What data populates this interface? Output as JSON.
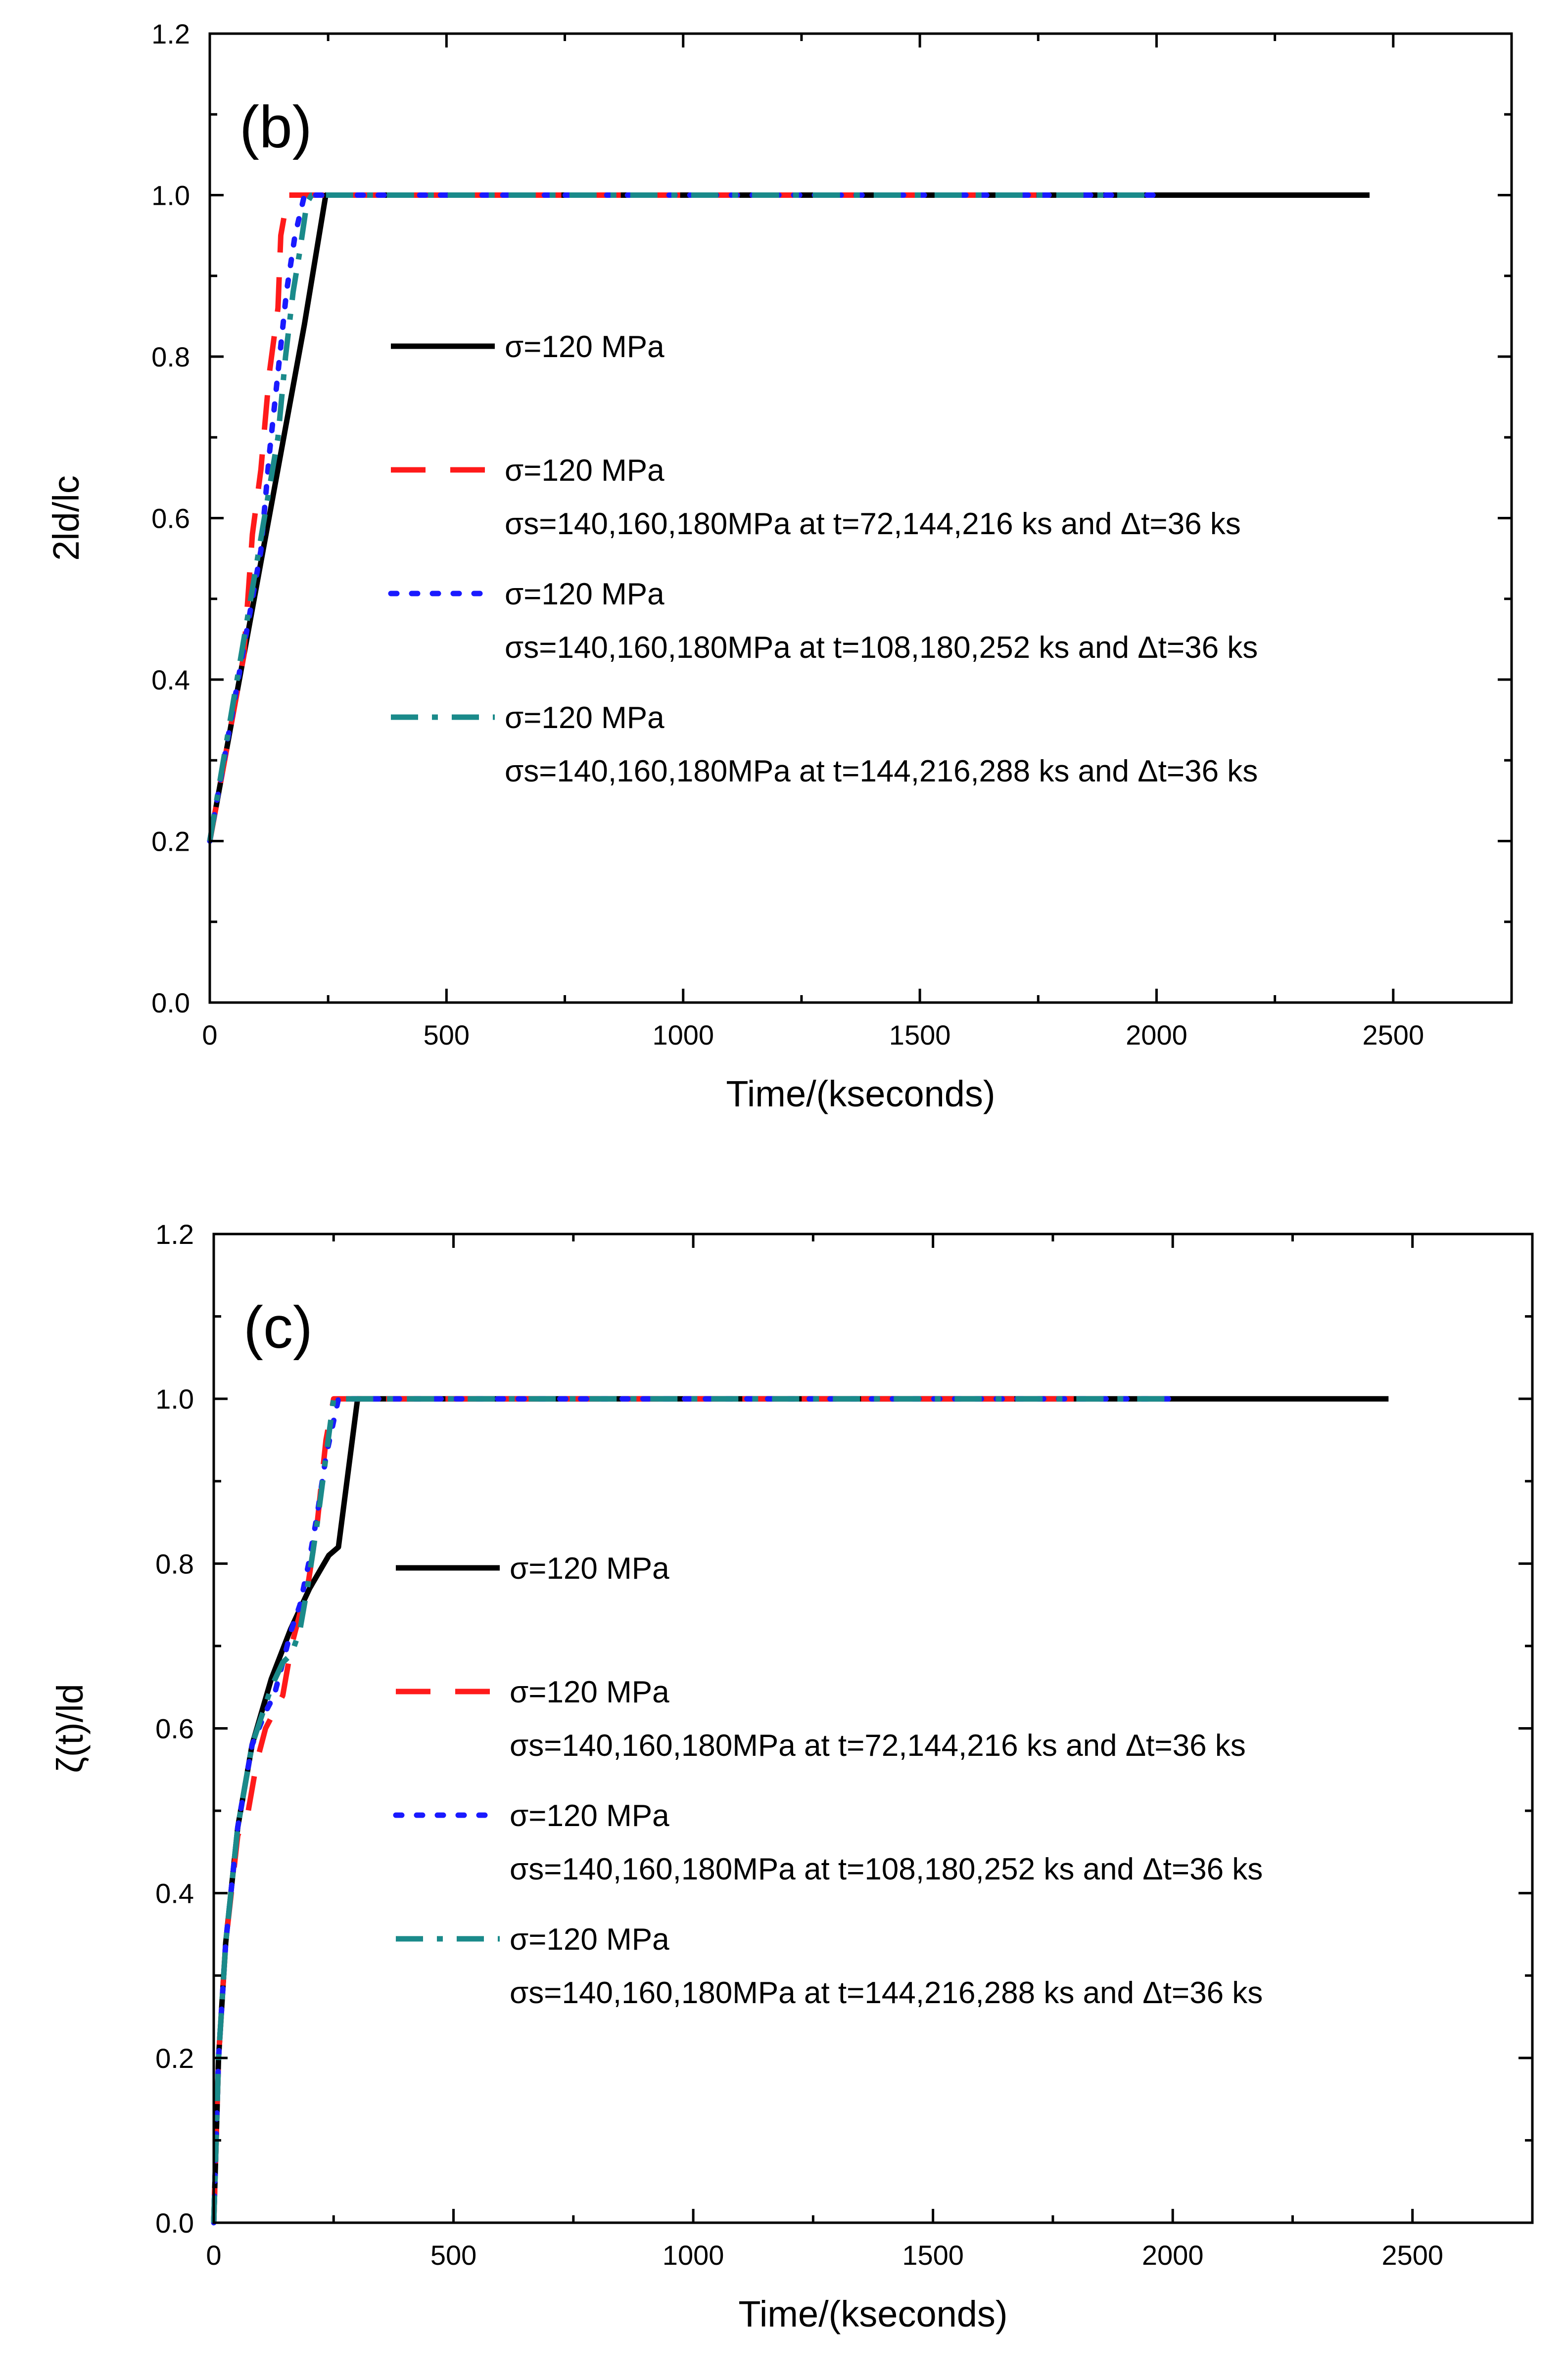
{
  "chart_data": [
    {
      "type": "line",
      "panel_label": "(b)",
      "xlabel": "Time/(kseconds)",
      "ylabel": "2ld/lc",
      "xlim": [
        0,
        2750
      ],
      "ylim": [
        0,
        1.2
      ],
      "xticks": [
        "0",
        "500",
        "1000",
        "1500",
        "2000",
        "2500"
      ],
      "yticks": [
        "0.0",
        "0.2",
        "0.4",
        "0.6",
        "0.8",
        "1.0",
        "1.2"
      ],
      "legend_position": "center-right",
      "series": [
        {
          "name": "σ=120 MPa",
          "sublabel": "",
          "color": "#000000",
          "style": "solid",
          "x": [
            0,
            100,
            200,
            245,
            2450
          ],
          "y": [
            0.2,
            0.52,
            0.84,
            1.0,
            1.0
          ]
        },
        {
          "name": "σ=120 MPa",
          "sublabel": "σs=140,160,180MPa at t=72,144,216 ks and Δt=36 ks",
          "color": "#ff1a1a",
          "style": "dash",
          "x": [
            0,
            72,
            90,
            108,
            126,
            144,
            150,
            165,
            1800
          ],
          "y": [
            0.2,
            0.43,
            0.58,
            0.66,
            0.78,
            0.86,
            0.95,
            1.0,
            1.0
          ]
        },
        {
          "name": "σ=120 MPa",
          "sublabel": "σs=140,160,180MPa at t=108,180,252 ks and Δt=36 ks",
          "color": "#1a1aff",
          "style": "dot",
          "x": [
            0,
            108,
            126,
            144,
            162,
            180,
            200,
            2000
          ],
          "y": [
            0.2,
            0.56,
            0.68,
            0.78,
            0.88,
            0.95,
            1.0,
            1.0
          ]
        },
        {
          "name": "σ=120 MPa",
          "sublabel": "σs=140,160,180MPa at t=144,216,288 ks and Δt=36 ks",
          "color": "#1a8a8a",
          "style": "dashdot",
          "x": [
            0,
            144,
            160,
            176,
            190,
            205,
            215,
            2000
          ],
          "y": [
            0.2,
            0.7,
            0.8,
            0.88,
            0.93,
            0.99,
            1.0,
            1.0
          ]
        }
      ]
    },
    {
      "type": "line",
      "panel_label": "(c)",
      "xlabel": "Time/(kseconds)",
      "ylabel": "ζ(t)/ld",
      "xlim": [
        0,
        2750
      ],
      "ylim": [
        0,
        1.2
      ],
      "xticks": [
        "0",
        "500",
        "1000",
        "1500",
        "2000",
        "2500"
      ],
      "yticks": [
        "0.0",
        "0.2",
        "0.4",
        "0.6",
        "0.8",
        "1.0",
        "1.2"
      ],
      "legend_position": "center-right",
      "series": [
        {
          "name": "σ=120 MPa",
          "sublabel": "",
          "color": "#000000",
          "style": "solid",
          "x": [
            0,
            10,
            25,
            50,
            80,
            120,
            160,
            200,
            240,
            260,
            300,
            2450
          ],
          "y": [
            0,
            0.2,
            0.34,
            0.48,
            0.58,
            0.66,
            0.72,
            0.77,
            0.81,
            0.82,
            1.0,
            1.0
          ]
        },
        {
          "name": "σ=120 MPa",
          "sublabel": "σs=140,160,180MPa at t=72,144,216 ks and Δt=36 ks",
          "color": "#ff1a1a",
          "style": "dash",
          "x": [
            0,
            10,
            25,
            50,
            72,
            90,
            108,
            126,
            144,
            162,
            180,
            198,
            216,
            234,
            250,
            1800
          ],
          "y": [
            0,
            0.2,
            0.34,
            0.47,
            0.5,
            0.56,
            0.6,
            0.62,
            0.64,
            0.7,
            0.74,
            0.78,
            0.85,
            0.95,
            1.0,
            1.0
          ]
        },
        {
          "name": "σ=120 MPa",
          "sublabel": "σs=140,160,180MPa at t=108,180,252 ks and Δt=36 ks",
          "color": "#1a1aff",
          "style": "dot",
          "x": [
            0,
            10,
            25,
            50,
            80,
            108,
            126,
            144,
            162,
            180,
            198,
            216,
            234,
            260,
            2000
          ],
          "y": [
            0,
            0.2,
            0.34,
            0.48,
            0.58,
            0.62,
            0.64,
            0.68,
            0.72,
            0.75,
            0.8,
            0.86,
            0.93,
            1.0,
            1.0
          ]
        },
        {
          "name": "σ=120 MPa",
          "sublabel": "σs=140,160,180MPa at t=144,216,288 ks and Δt=36 ks",
          "color": "#1a8a8a",
          "style": "dashdot",
          "x": [
            0,
            10,
            25,
            50,
            80,
            120,
            144,
            162,
            180,
            198,
            216,
            234,
            250,
            2000
          ],
          "y": [
            0,
            0.2,
            0.34,
            0.48,
            0.58,
            0.65,
            0.68,
            0.69,
            0.72,
            0.78,
            0.85,
            0.93,
            1.0,
            1.0
          ]
        }
      ]
    }
  ]
}
